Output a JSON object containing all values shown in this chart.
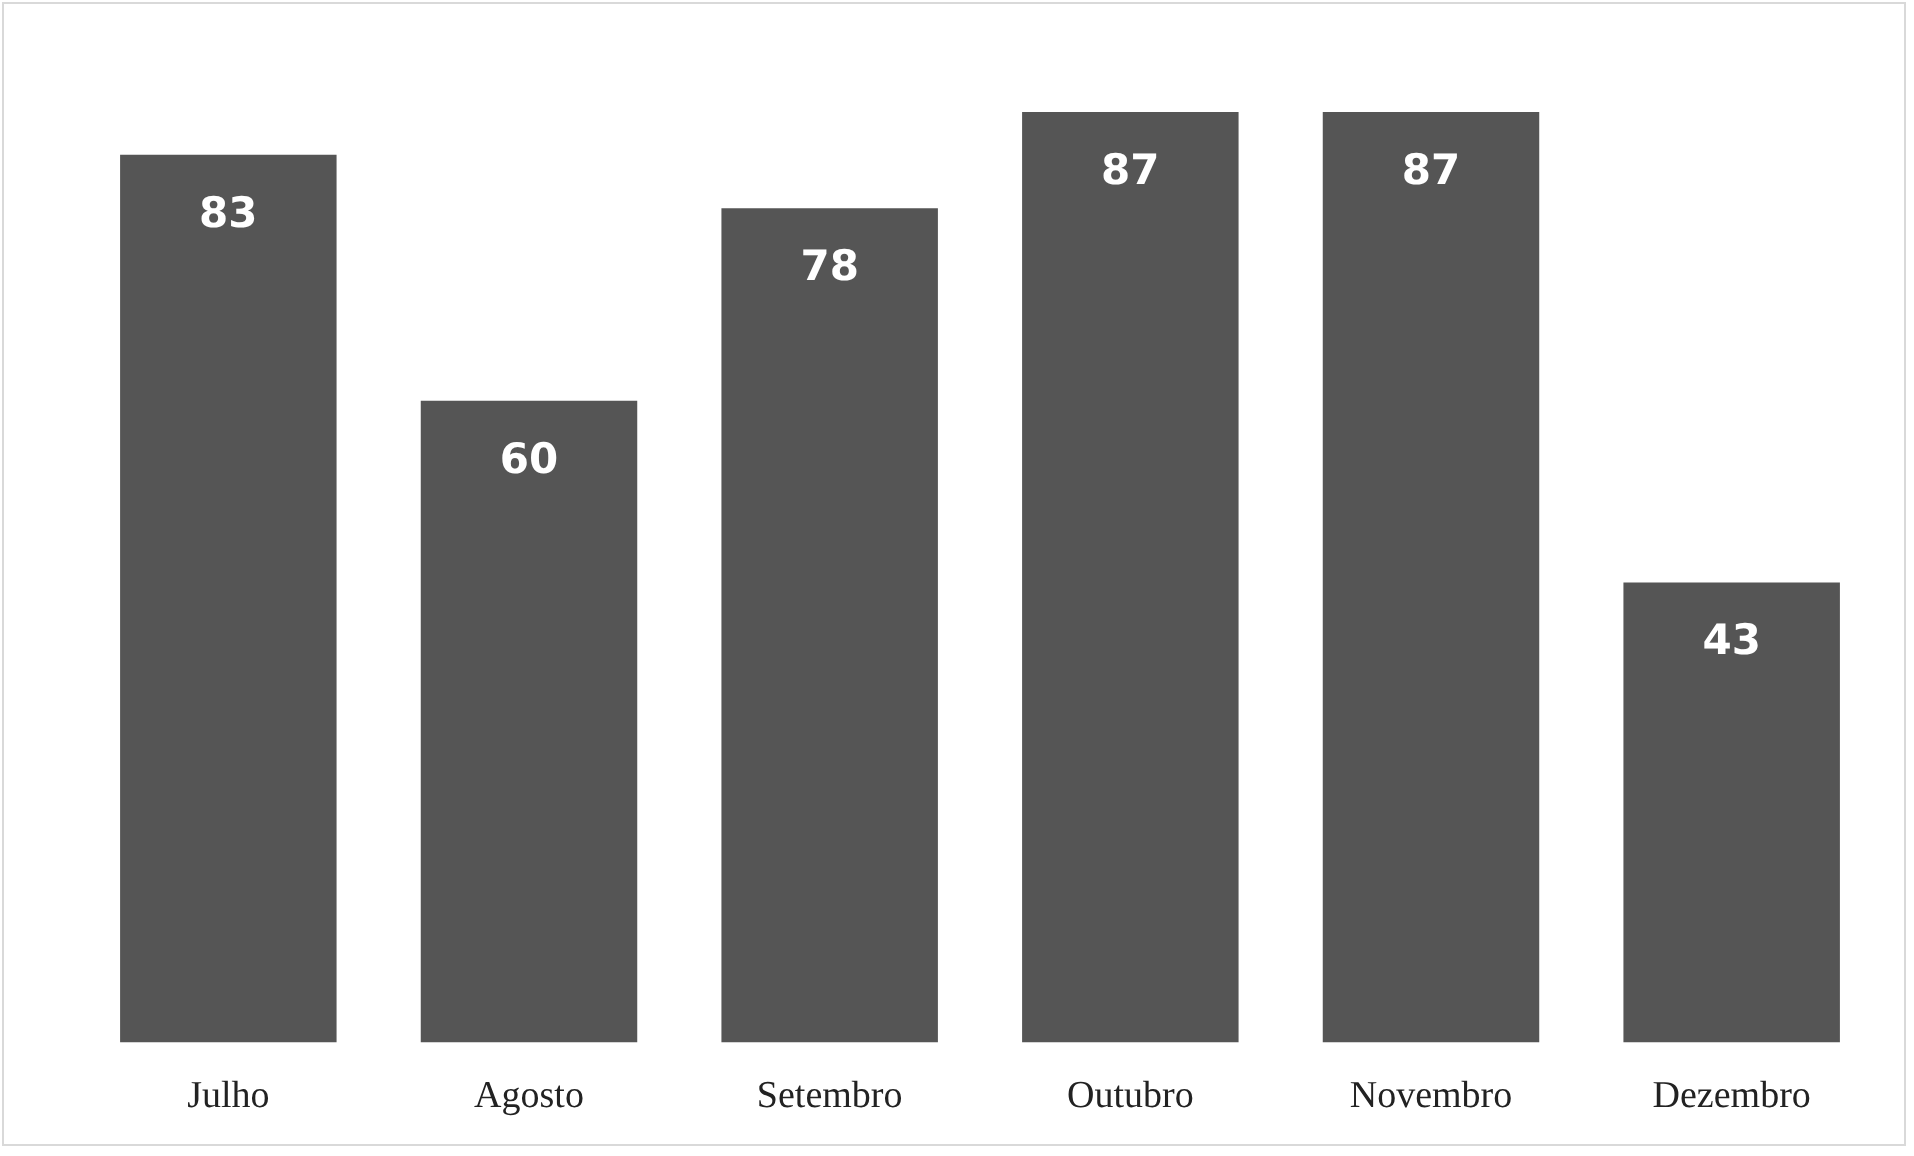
{
  "chart_data": {
    "type": "bar",
    "categories": [
      "Julho",
      "Agosto",
      "Setembro",
      "Outubro",
      "Novembro",
      "Dezembro"
    ],
    "values": [
      83,
      60,
      78,
      87,
      87,
      43
    ],
    "color": "#555555",
    "data_labels": true,
    "grid": false,
    "legend": false
  }
}
